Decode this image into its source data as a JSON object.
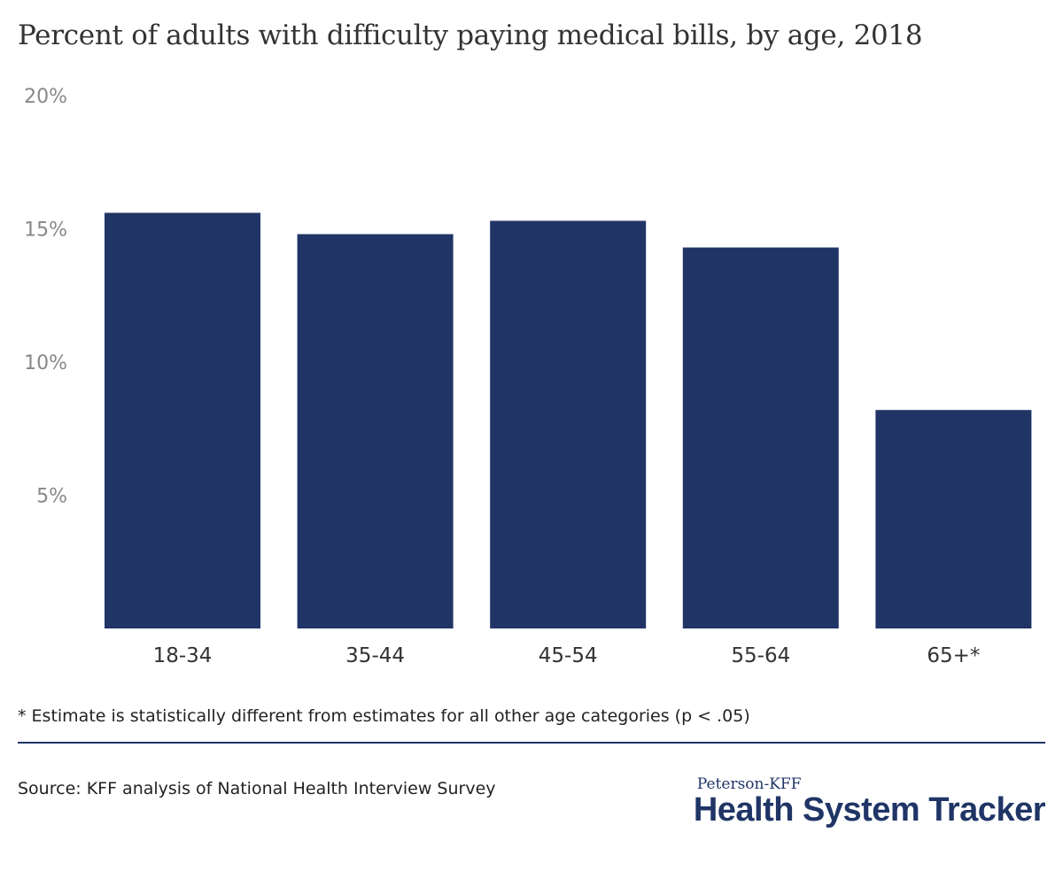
{
  "title": "Percent of adults with difficulty paying medical bills, by age, 2018",
  "footnote": "* Estimate is statistically different from estimates for all other age categories (p < .05)",
  "source": "Source: KFF analysis of National Health Interview Survey",
  "logo": {
    "top": "Peterson-KFF",
    "main": "Health System Tracker"
  },
  "colors": {
    "bar": "#203566",
    "tick_text": "#888888",
    "category_text": "#333333"
  },
  "chart_data": {
    "type": "bar",
    "title": "Percent of adults with difficulty paying medical bills, by age, 2018",
    "xlabel": "",
    "ylabel": "",
    "categories": [
      "18-34",
      "35-44",
      "45-54",
      "55-64",
      "65+*"
    ],
    "values": [
      15.6,
      14.8,
      15.3,
      14.3,
      8.2
    ],
    "ylim": [
      0,
      20
    ],
    "yticks": [
      5,
      10,
      15,
      20
    ],
    "ytick_labels": [
      "5%",
      "10%",
      "15%",
      "20%"
    ],
    "grid": false,
    "legend": "none"
  }
}
